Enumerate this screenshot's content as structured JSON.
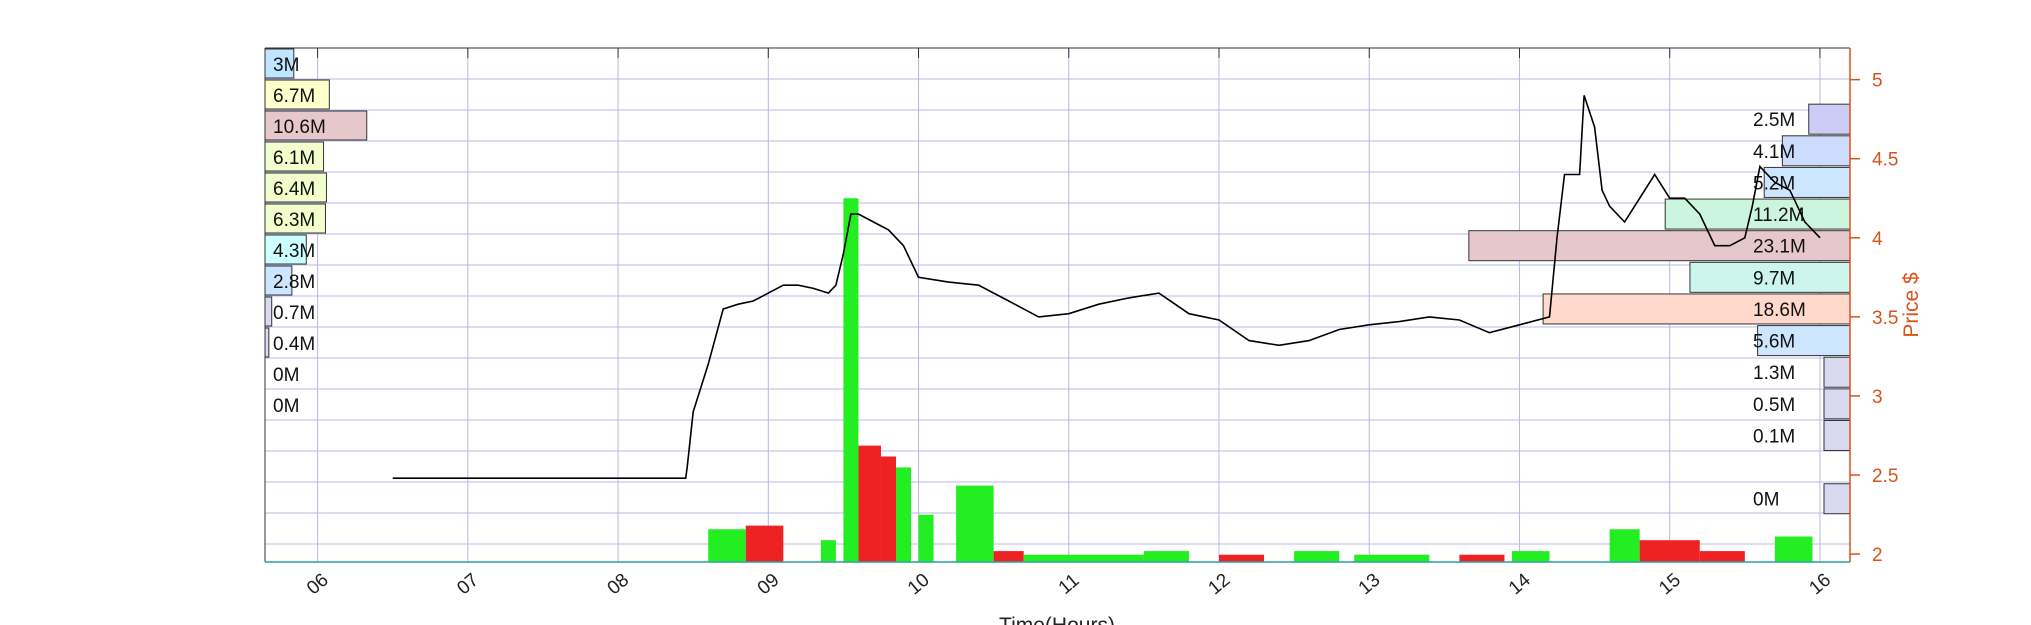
{
  "chart_data": {
    "type": "line",
    "xlabel": "Time(Hours)",
    "ylabel": "Price $",
    "xlim": [
      5.65,
      16.2
    ],
    "ylim": [
      1.95,
      5.2
    ],
    "grid": true,
    "x_ticks": [
      {
        "value": 6,
        "label": "06"
      },
      {
        "value": 7,
        "label": "07"
      },
      {
        "value": 8,
        "label": "08"
      },
      {
        "value": 9,
        "label": "09"
      },
      {
        "value": 10,
        "label": "10"
      },
      {
        "value": 11,
        "label": "11"
      },
      {
        "value": 12,
        "label": "12"
      },
      {
        "value": 13,
        "label": "13"
      },
      {
        "value": 14,
        "label": "14"
      },
      {
        "value": 15,
        "label": "15"
      },
      {
        "value": 16,
        "label": "16"
      }
    ],
    "y_ticks": [
      {
        "value": 2,
        "label": "2"
      },
      {
        "value": 2.5,
        "label": "2.5"
      },
      {
        "value": 3,
        "label": "3"
      },
      {
        "value": 3.5,
        "label": "3.5"
      },
      {
        "value": 4,
        "label": "4"
      },
      {
        "value": 4.5,
        "label": "4.5"
      },
      {
        "value": 5,
        "label": "5"
      }
    ],
    "price_series": [
      [
        6.5,
        2.48
      ],
      [
        8.45,
        2.48
      ],
      [
        8.46,
        2.55
      ],
      [
        8.5,
        2.9
      ],
      [
        8.6,
        3.2
      ],
      [
        8.7,
        3.55
      ],
      [
        8.8,
        3.58
      ],
      [
        8.9,
        3.6
      ],
      [
        9.0,
        3.65
      ],
      [
        9.1,
        3.7
      ],
      [
        9.2,
        3.7
      ],
      [
        9.3,
        3.68
      ],
      [
        9.4,
        3.65
      ],
      [
        9.45,
        3.7
      ],
      [
        9.5,
        3.9
      ],
      [
        9.55,
        4.15
      ],
      [
        9.6,
        4.15
      ],
      [
        9.7,
        4.1
      ],
      [
        9.8,
        4.05
      ],
      [
        9.9,
        3.95
      ],
      [
        10.0,
        3.75
      ],
      [
        10.2,
        3.72
      ],
      [
        10.4,
        3.7
      ],
      [
        10.6,
        3.6
      ],
      [
        10.8,
        3.5
      ],
      [
        11.0,
        3.52
      ],
      [
        11.2,
        3.58
      ],
      [
        11.4,
        3.62
      ],
      [
        11.6,
        3.65
      ],
      [
        11.8,
        3.52
      ],
      [
        12.0,
        3.48
      ],
      [
        12.2,
        3.35
      ],
      [
        12.4,
        3.32
      ],
      [
        12.6,
        3.35
      ],
      [
        12.8,
        3.42
      ],
      [
        13.0,
        3.45
      ],
      [
        13.2,
        3.47
      ],
      [
        13.4,
        3.5
      ],
      [
        13.6,
        3.48
      ],
      [
        13.8,
        3.4
      ],
      [
        14.0,
        3.45
      ],
      [
        14.2,
        3.5
      ],
      [
        14.25,
        4.0
      ],
      [
        14.3,
        4.4
      ],
      [
        14.4,
        4.4
      ],
      [
        14.43,
        4.9
      ],
      [
        14.5,
        4.7
      ],
      [
        14.55,
        4.3
      ],
      [
        14.6,
        4.2
      ],
      [
        14.7,
        4.1
      ],
      [
        14.8,
        4.25
      ],
      [
        14.9,
        4.4
      ],
      [
        15.0,
        4.25
      ],
      [
        15.1,
        4.25
      ],
      [
        15.2,
        4.15
      ],
      [
        15.3,
        3.95
      ],
      [
        15.4,
        3.95
      ],
      [
        15.5,
        4.0
      ],
      [
        15.55,
        4.2
      ],
      [
        15.6,
        4.45
      ],
      [
        15.7,
        4.35
      ],
      [
        15.8,
        4.3
      ],
      [
        15.9,
        4.1
      ],
      [
        16.0,
        4.0
      ]
    ],
    "volume_bars": [
      {
        "x0": 8.6,
        "x1": 8.85,
        "height": 0.09,
        "color": "#22ee22"
      },
      {
        "x0": 8.85,
        "x1": 9.1,
        "height": 0.1,
        "color": "#ee2222"
      },
      {
        "x0": 9.35,
        "x1": 9.45,
        "height": 0.06,
        "color": "#22ee22"
      },
      {
        "x0": 9.5,
        "x1": 9.6,
        "height": 1.0,
        "color": "#22ee22"
      },
      {
        "x0": 9.6,
        "x1": 9.75,
        "height": 0.32,
        "color": "#ee2222"
      },
      {
        "x0": 9.75,
        "x1": 9.85,
        "height": 0.29,
        "color": "#ee2222"
      },
      {
        "x0": 9.85,
        "x1": 9.95,
        "height": 0.26,
        "color": "#22ee22"
      },
      {
        "x0": 10.0,
        "x1": 10.1,
        "height": 0.13,
        "color": "#22ee22"
      },
      {
        "x0": 10.25,
        "x1": 10.5,
        "height": 0.21,
        "color": "#22ee22"
      },
      {
        "x0": 10.5,
        "x1": 10.7,
        "height": 0.03,
        "color": "#ee2222"
      },
      {
        "x0": 10.7,
        "x1": 11.5,
        "height": 0.02,
        "color": "#22ee22"
      },
      {
        "x0": 11.5,
        "x1": 11.8,
        "height": 0.03,
        "color": "#22ee22"
      },
      {
        "x0": 12.0,
        "x1": 12.3,
        "height": 0.02,
        "color": "#ee2222"
      },
      {
        "x0": 12.5,
        "x1": 12.8,
        "height": 0.03,
        "color": "#22ee22"
      },
      {
        "x0": 12.9,
        "x1": 13.4,
        "height": 0.02,
        "color": "#22ee22"
      },
      {
        "x0": 13.6,
        "x1": 13.9,
        "height": 0.02,
        "color": "#ee2222"
      },
      {
        "x0": 13.95,
        "x1": 14.2,
        "height": 0.03,
        "color": "#22ee22"
      },
      {
        "x0": 14.6,
        "x1": 14.8,
        "height": 0.09,
        "color": "#22ee22"
      },
      {
        "x0": 14.8,
        "x1": 15.2,
        "height": 0.06,
        "color": "#ee2222"
      },
      {
        "x0": 15.2,
        "x1": 15.5,
        "height": 0.03,
        "color": "#ee2222"
      },
      {
        "x0": 15.7,
        "x1": 15.95,
        "height": 0.07,
        "color": "#22ee22"
      }
    ],
    "volume_profile_left": [
      {
        "label": "3M",
        "row": 0,
        "extent": 0.3,
        "color": "#bfe6ff"
      },
      {
        "label": "6.7M",
        "row": 1,
        "extent": 0.67,
        "color": "#ffffcc"
      },
      {
        "label": "10.6M",
        "row": 2,
        "extent": 1.06,
        "color": "#e6c8cc"
      },
      {
        "label": "6.1M",
        "row": 3,
        "extent": 0.61,
        "color": "#f2ffcc"
      },
      {
        "label": "6.4M",
        "row": 4,
        "extent": 0.64,
        "color": "#f2ffcc"
      },
      {
        "label": "6.3M",
        "row": 5,
        "extent": 0.63,
        "color": "#f2ffcc"
      },
      {
        "label": "4.3M",
        "row": 6,
        "extent": 0.43,
        "color": "#ccffff"
      },
      {
        "label": "2.8M",
        "row": 7,
        "extent": 0.28,
        "color": "#cce6ff"
      },
      {
        "label": "0.7M",
        "row": 8,
        "extent": 0.07,
        "color": "#d9d9f2"
      },
      {
        "label": "0.4M",
        "row": 9,
        "extent": 0.04,
        "color": "#d9d9f2"
      },
      {
        "label": "0M",
        "row": 10,
        "extent": 0.0,
        "color": "#ffffff"
      },
      {
        "label": "0M",
        "row": 11,
        "extent": 0.0,
        "color": "#ffffff"
      }
    ],
    "volume_profile_right": [
      {
        "label": "2.5M",
        "price": 4.75,
        "extent": 0.25,
        "color": "#ccccf7"
      },
      {
        "label": "4.1M",
        "price": 4.55,
        "extent": 0.41,
        "color": "#ccdcff"
      },
      {
        "label": "5.2M",
        "price": 4.35,
        "extent": 0.52,
        "color": "#cce6ff"
      },
      {
        "label": "11.2M",
        "price": 4.15,
        "extent": 1.12,
        "color": "#ccf5dd"
      },
      {
        "label": "23.1M",
        "price": 3.95,
        "extent": 2.31,
        "color": "#e6c8cc"
      },
      {
        "label": "9.7M",
        "price": 3.75,
        "extent": 0.97,
        "color": "#ccf5ee"
      },
      {
        "label": "18.6M",
        "price": 3.55,
        "extent": 1.86,
        "color": "#ffd9cc"
      },
      {
        "label": "5.6M",
        "price": 3.35,
        "extent": 0.56,
        "color": "#cce6ff"
      },
      {
        "label": "1.3M",
        "price": 3.15,
        "extent": 0.13,
        "color": "#d9d9f2"
      },
      {
        "label": "0.5M",
        "price": 2.95,
        "extent": 0.05,
        "color": "#d9d9f2"
      },
      {
        "label": "0.1M",
        "price": 2.75,
        "extent": 0.01,
        "color": "#d9d9f2"
      },
      {
        "label": "0M",
        "price": 2.35,
        "extent": 0.0,
        "color": "#d9d9f2"
      }
    ],
    "colors": {
      "price_line": "#000000",
      "grid": "#b8b8e6",
      "price_axis": "#d95319",
      "axis": "#333333",
      "bottom_axis": "#2aa0a0"
    }
  }
}
